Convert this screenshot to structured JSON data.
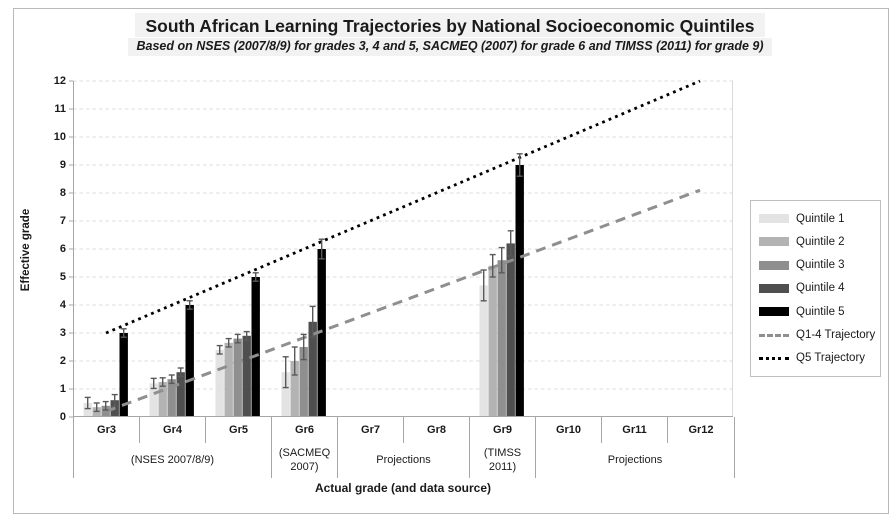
{
  "chart_data": {
    "type": "bar",
    "title": "South African Learning Trajectories by National Socioeconomic Quintiles",
    "subtitle": "Based on NSES (2007/8/9)  for grades 3, 4 and 5, SACMEQ (2007) for grade 6 and TIMSS (2011) for grade 9)",
    "ylabel": "Effective grade",
    "xlabel": "Actual grade (and data source)",
    "ylim": [
      0,
      12
    ],
    "ytick_step": 1,
    "grid": "dashed-horizontal",
    "legend_position": "right",
    "categories": [
      "Gr3",
      "Gr4",
      "Gr5",
      "Gr6",
      "Gr7",
      "Gr8",
      "Gr9",
      "Gr10",
      "Gr11",
      "Gr12"
    ],
    "source_groups": [
      {
        "label": "(NSES 2007/8/9)",
        "span": 3
      },
      {
        "label": "(SACMEQ 2007)",
        "span": 1
      },
      {
        "label": "Projections",
        "span": 2
      },
      {
        "label": "(TIMSS 2011)",
        "span": 1
      },
      {
        "label": "Projections",
        "span": 3
      }
    ],
    "series": [
      {
        "name": "Quintile 1",
        "color": "#e3e3e3",
        "values": [
          0.5,
          1.2,
          2.4,
          1.6,
          null,
          null,
          4.7,
          null,
          null,
          null
        ],
        "errors": [
          0.2,
          0.18,
          0.15,
          0.55,
          null,
          null,
          0.55,
          null,
          null,
          null
        ]
      },
      {
        "name": "Quintile 2",
        "color": "#b3b3b3",
        "values": [
          0.35,
          1.25,
          2.65,
          2.0,
          null,
          null,
          5.4,
          null,
          null,
          null
        ],
        "errors": [
          0.15,
          0.15,
          0.15,
          0.5,
          null,
          null,
          0.4,
          null,
          null,
          null
        ]
      },
      {
        "name": "Quintile 3",
        "color": "#8f8f8f",
        "values": [
          0.4,
          1.35,
          2.8,
          2.5,
          null,
          null,
          5.6,
          null,
          null,
          null
        ],
        "errors": [
          0.15,
          0.15,
          0.15,
          0.45,
          null,
          null,
          0.45,
          null,
          null,
          null
        ]
      },
      {
        "name": "Quintile 4",
        "color": "#4f4f4f",
        "values": [
          0.6,
          1.6,
          2.9,
          3.4,
          null,
          null,
          6.2,
          null,
          null,
          null
        ],
        "errors": [
          0.2,
          0.15,
          0.15,
          0.55,
          null,
          null,
          0.45,
          null,
          null,
          null
        ]
      },
      {
        "name": "Quintile 5",
        "color": "#000000",
        "values": [
          3.0,
          4.0,
          5.0,
          6.0,
          null,
          null,
          9.0,
          null,
          null,
          null
        ],
        "errors": [
          0.15,
          0.15,
          0.15,
          0.35,
          null,
          null,
          0.4,
          null,
          null,
          null
        ]
      }
    ],
    "trajectories": [
      {
        "name": "Q1-4 Trajectory",
        "style": "dashed",
        "color": "#8f8f8f",
        "from_category": "Gr3",
        "from_value": 0.2,
        "to_category": "Gr12",
        "to_value": 8.1
      },
      {
        "name": "Q5 Trajectory",
        "style": "dotted",
        "color": "#000000",
        "from_category": "Gr3",
        "from_value": 3.0,
        "to_category": "Gr12",
        "to_value": 12.0
      }
    ],
    "legend": [
      {
        "label": "Quintile 1",
        "swatch": "bar",
        "color": "#e3e3e3"
      },
      {
        "label": "Quintile 2",
        "swatch": "bar",
        "color": "#b3b3b3"
      },
      {
        "label": "Quintile 3",
        "swatch": "bar",
        "color": "#8f8f8f"
      },
      {
        "label": "Quintile 4",
        "swatch": "bar",
        "color": "#4f4f4f"
      },
      {
        "label": "Quintile 5",
        "swatch": "bar",
        "color": "#000000"
      },
      {
        "label": "Q1-4 Trajectory",
        "swatch": "dashed-line",
        "color": "#8f8f8f"
      },
      {
        "label": "Q5 Trajectory",
        "swatch": "dotted-line",
        "color": "#000000"
      }
    ],
    "error_bar_color": "#595959",
    "gridline_color": "#dcdcdc"
  }
}
